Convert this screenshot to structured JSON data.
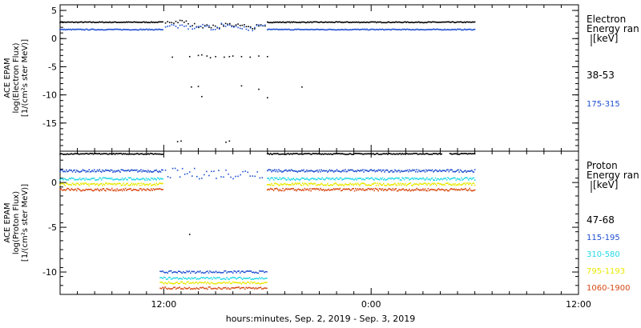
{
  "colors": {
    "black": "#000000",
    "blue": "#1f4fd1",
    "cyan": "#22d8e6",
    "yellow": "#e8e800",
    "orange": "#d84a14"
  },
  "chart_data": [
    {
      "type": "scatter",
      "panel": "electron",
      "ylabel_lines": [
        "ACE EPAM",
        "log(Electron Flux)",
        "[1/(cm²s ster MeV)]"
      ],
      "ylim": [
        -20,
        6
      ],
      "yticks": [
        5,
        0,
        -5,
        -10,
        -15
      ],
      "ytick_labels": [
        "5",
        "0",
        "-5",
        "-10",
        "-15"
      ],
      "legend_title_lines": [
        "Electron",
        "Energy ran",
        "[keV]"
      ],
      "series": [
        {
          "name": "38-53",
          "color_key": "black",
          "baseline": 2.9,
          "gap_values": [
            2.9,
            3.0,
            2.4,
            2.2,
            2.1,
            2.5,
            2.3,
            2.0,
            2.4
          ],
          "scattered": [
            [
              -2.5,
              -3.3
            ],
            [
              -1.5,
              -3.2
            ],
            [
              -1.0,
              -3.0
            ],
            [
              -0.5,
              -3.1
            ],
            [
              0.0,
              -3.2
            ],
            [
              0.5,
              -3.3
            ],
            [
              1.0,
              -3.1
            ],
            [
              -0.8,
              -2.9
            ],
            [
              -0.3,
              -3.4
            ],
            [
              0.8,
              -3.2
            ],
            [
              1.5,
              -3.2
            ],
            [
              2.0,
              -3.3
            ],
            [
              2.5,
              -3.1
            ],
            [
              3.0,
              -3.2
            ],
            [
              -2.2,
              -18.3
            ],
            [
              -2.0,
              -18.2
            ],
            [
              0.6,
              -18.4
            ],
            [
              0.8,
              -18.2
            ],
            [
              -1.4,
              -8.6
            ],
            [
              -1.0,
              -8.5
            ],
            [
              -0.8,
              -10.3
            ],
            [
              1.5,
              -8.4
            ],
            [
              2.5,
              -9.0
            ],
            [
              3.0,
              -10.5
            ],
            [
              5.0,
              -8.6
            ]
          ]
        },
        {
          "name": "175-315",
          "color_key": "blue",
          "baseline": 1.6,
          "gap_values": [
            2.3,
            2.1,
            1.9,
            2.2,
            1.8,
            2.4,
            2.0,
            1.7,
            2.2
          ],
          "scattered": []
        }
      ]
    },
    {
      "type": "scatter",
      "panel": "proton",
      "ylabel_lines": [
        "ACE EPAM",
        "log(Proton Flux)",
        "[1/(cm²s ster MeV)]"
      ],
      "ylim": [
        -12.5,
        3.5
      ],
      "yticks": [
        0,
        -5,
        -10
      ],
      "ytick_labels": [
        "0",
        "-5",
        "-10"
      ],
      "legend_title_lines": [
        "Proton",
        "Energy ran",
        "[keV]"
      ],
      "series": [
        {
          "name": "47-68",
          "color_key": "black",
          "baseline": 3.2,
          "gap_baseline": null,
          "scattered": [
            [
              -1.5,
              -5.8
            ]
          ]
        },
        {
          "name": "115-195",
          "color_key": "blue",
          "baseline": 1.3,
          "gap_baseline": -10.0,
          "scattered": []
        },
        {
          "name": "310-580",
          "color_key": "cyan",
          "baseline": 0.4,
          "gap_baseline": -10.7,
          "scattered": []
        },
        {
          "name": "795-1193",
          "color_key": "yellow",
          "baseline": -0.2,
          "gap_baseline": -11.2,
          "scattered": []
        },
        {
          "name": "1060-1900",
          "color_key": "orange",
          "baseline": -0.8,
          "gap_baseline": -11.8,
          "scattered": []
        }
      ]
    }
  ],
  "x_axis": {
    "range_hours": [
      6,
      36
    ],
    "data_start": 6,
    "gap_start": 12,
    "gap_end": 18,
    "data_end": 30,
    "ticks": [
      12,
      24,
      36
    ],
    "tick_labels": [
      "12:00",
      "0:00",
      "12:00"
    ],
    "title": "hours:minutes, Sep.  2, 2019 - Sep.  3, 2019"
  }
}
